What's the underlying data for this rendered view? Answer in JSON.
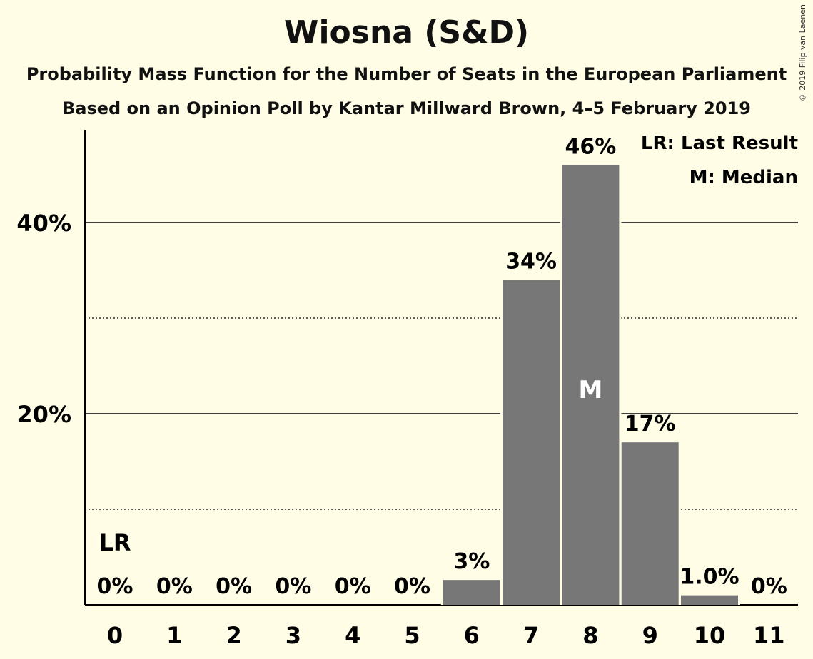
{
  "title": "Wiosna (S&D)",
  "subtitle": "Probability Mass Function for the Number of Seats in the European Parliament",
  "subtitle2": "Based on an Opinion Poll by Kantar Millward Brown, 4–5 February 2019",
  "copyright": "© 2019 Filip van Laenen",
  "legend": {
    "last_result": "LR: Last Result",
    "median": "M: Median"
  },
  "chart_data": {
    "type": "bar",
    "title": "Wiosna (S&D)",
    "subtitle": "Probability Mass Function for the Number of Seats in the European Parliament",
    "categories": [
      "0",
      "1",
      "2",
      "3",
      "4",
      "5",
      "6",
      "7",
      "8",
      "9",
      "10",
      "11"
    ],
    "values": [
      0,
      0,
      0,
      0,
      0,
      0,
      2.6,
      34,
      46,
      17,
      1.0,
      0
    ],
    "data_labels": [
      "0%",
      "0%",
      "0%",
      "0%",
      "0%",
      "0%",
      "3%",
      "34%",
      "46%",
      "17%",
      "1.0%",
      "0%"
    ],
    "ylim": [
      0,
      50
    ],
    "yticks": [
      {
        "value": 20,
        "label": "20%"
      },
      {
        "value": 40,
        "label": "40%"
      }
    ],
    "minor_gridlines": [
      10,
      30
    ],
    "last_result": {
      "category": "0",
      "label": "LR"
    },
    "median": {
      "category": "8",
      "label": "M"
    },
    "legend_position": "top-right",
    "bar_color": "#777777",
    "background_color": "#fffde6"
  }
}
